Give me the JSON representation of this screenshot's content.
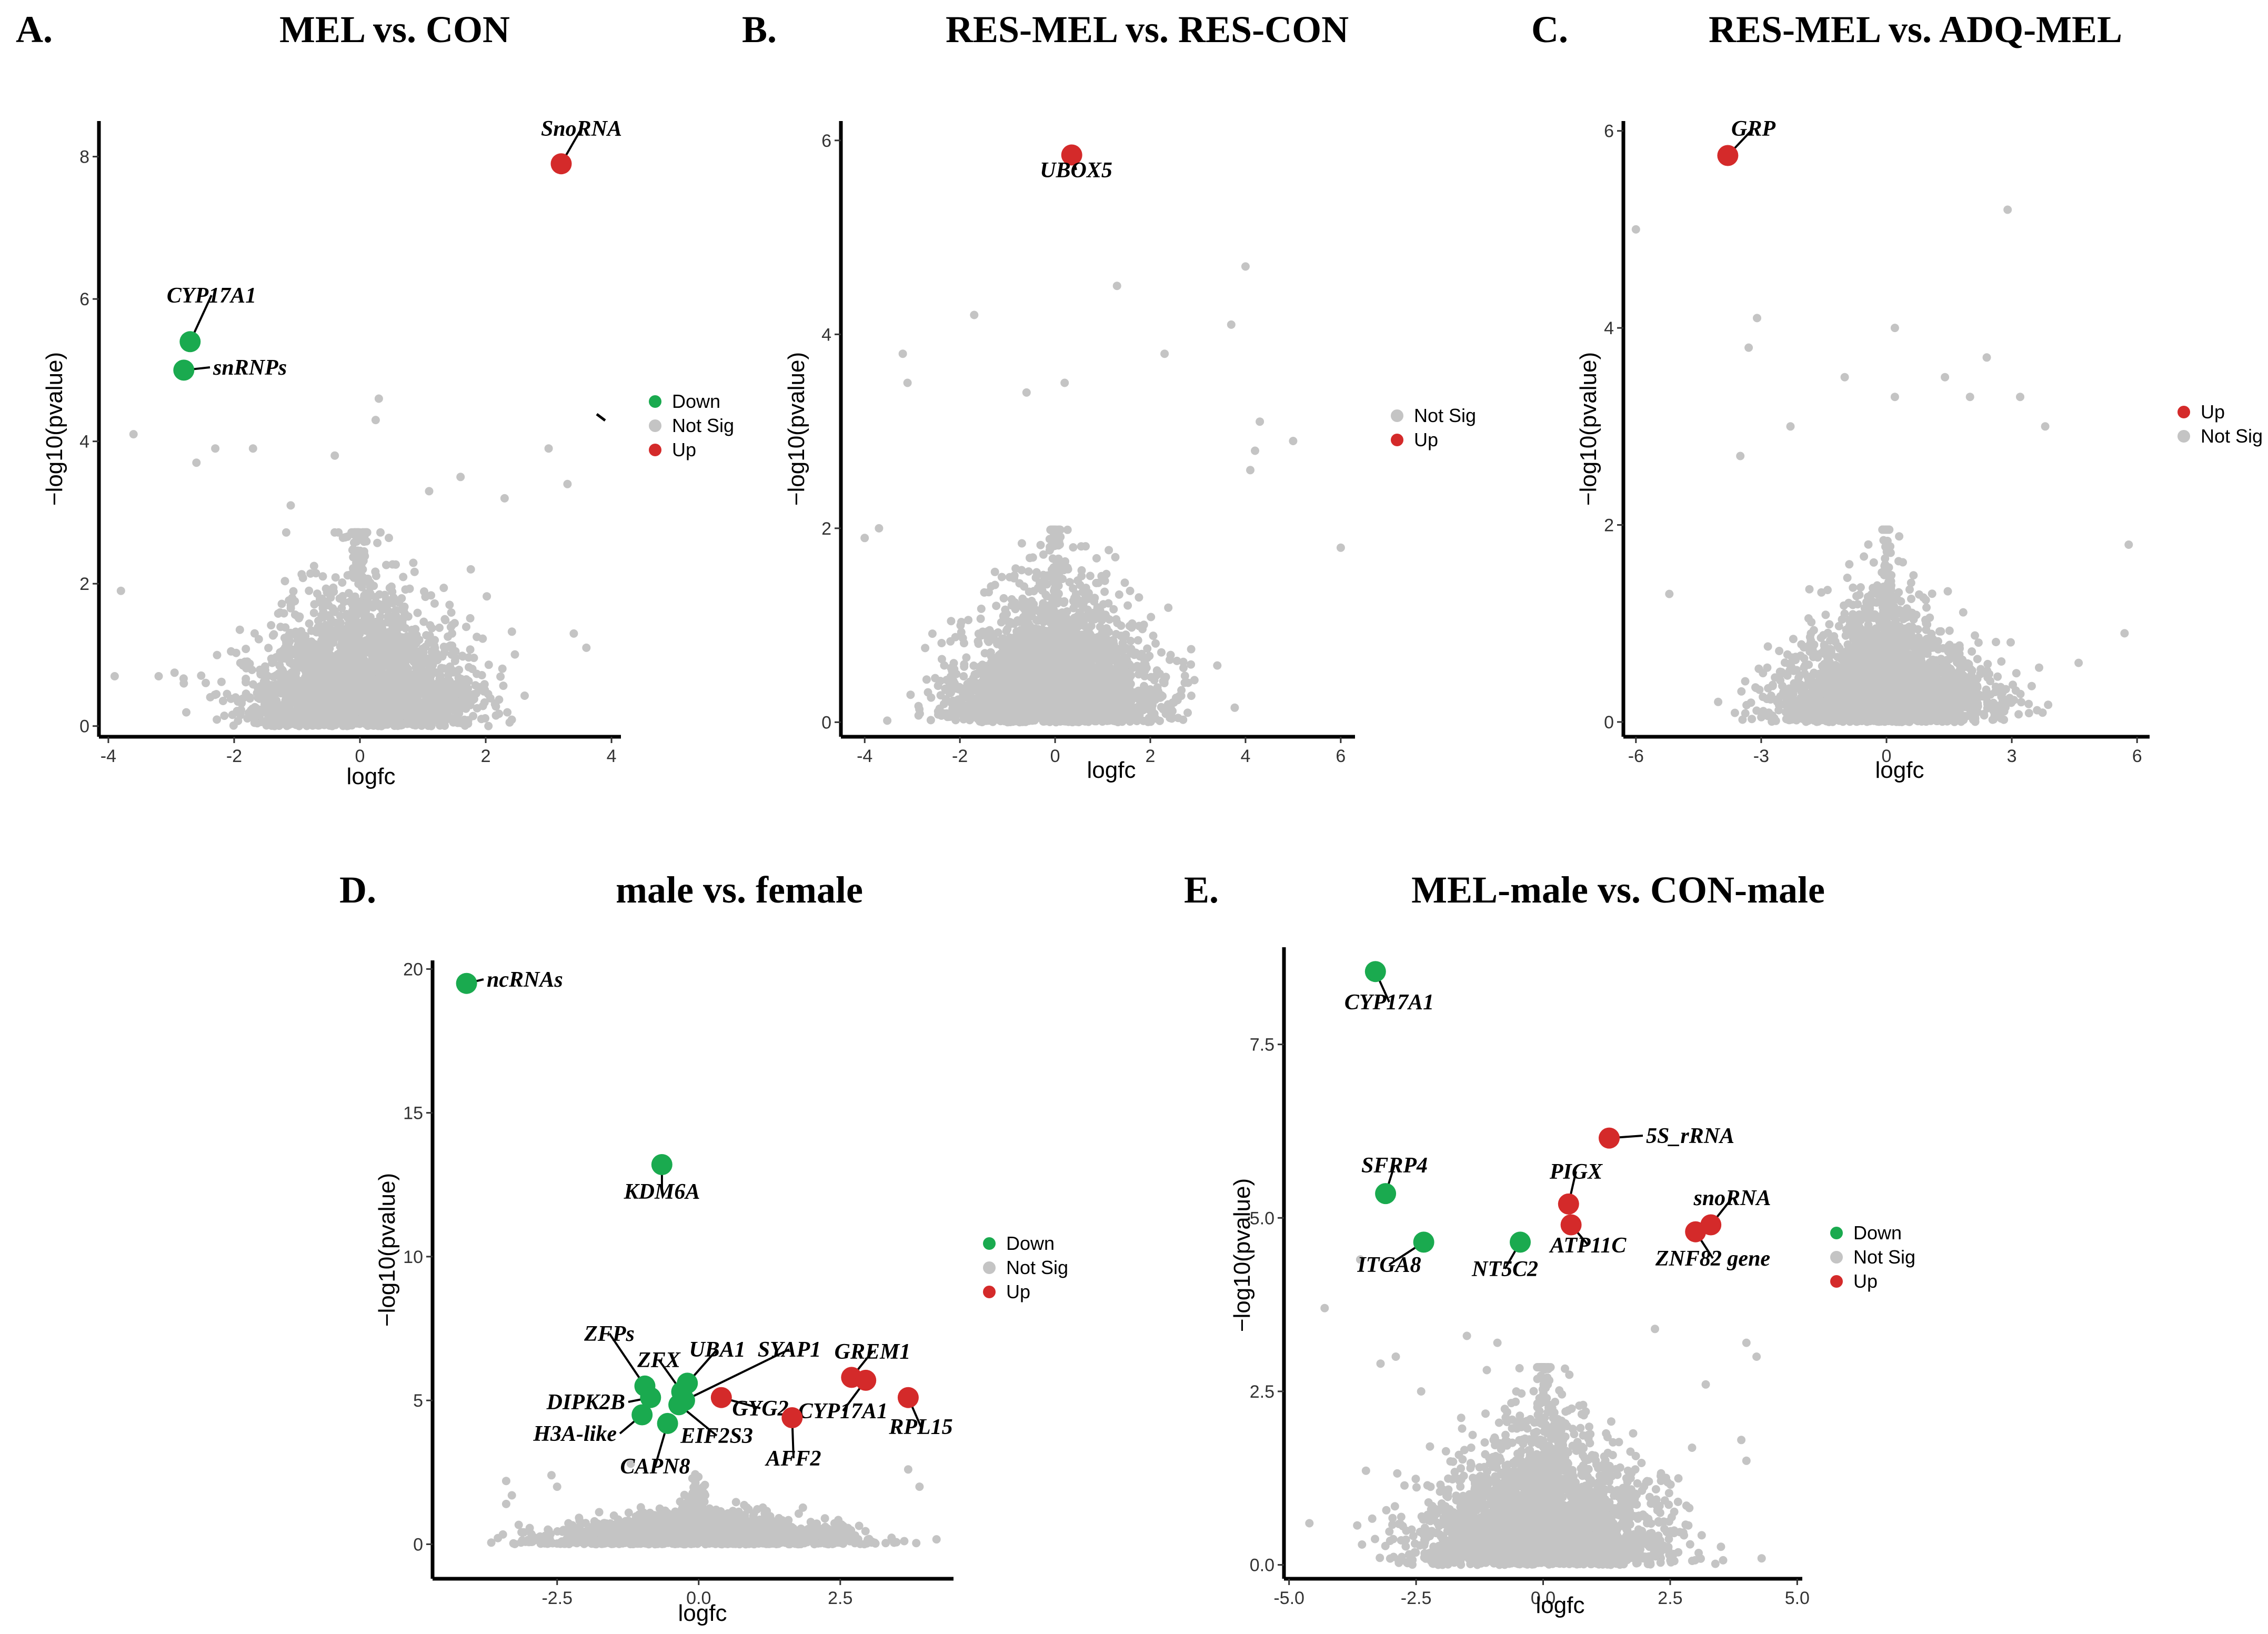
{
  "colors": {
    "down": "#1aaa4f",
    "not_sig": "#c4c4c4",
    "up": "#d42a2a",
    "axis": "#000000"
  },
  "chart_data": [
    {
      "id": "A",
      "letter": "A.",
      "title": "MEL vs. CON",
      "type": "scatter",
      "xlabel": "logfc",
      "ylabel": "−log10(pvalue)",
      "xlim": [
        -4.15,
        4.15
      ],
      "ylim": [
        -0.15,
        8.5
      ],
      "xticks": [
        {
          "v": -4,
          "t": "-4"
        },
        {
          "v": -2,
          "t": "-2"
        },
        {
          "v": 0,
          "t": "0"
        },
        {
          "v": 2,
          "t": "2"
        },
        {
          "v": 4,
          "t": "4"
        }
      ],
      "yticks": [
        {
          "v": 0,
          "t": "0"
        },
        {
          "v": 2,
          "t": "2"
        },
        {
          "v": 4,
          "t": "4"
        },
        {
          "v": 6,
          "t": "6"
        },
        {
          "v": 8,
          "t": "8"
        }
      ],
      "legend": [
        {
          "key": "down",
          "label": "Down"
        },
        {
          "key": "not_sig",
          "label": "Not Sig"
        },
        {
          "key": "up",
          "label": "Up"
        }
      ],
      "cloud": {
        "seed": 11,
        "n": 2600,
        "xscale": 0.85,
        "yscale": 0.95,
        "xmax": 3.9
      },
      "outliers": [
        [
          -3.6,
          4.1
        ],
        [
          -2.3,
          3.9
        ],
        [
          -1.7,
          3.9
        ],
        [
          -2.6,
          3.7
        ],
        [
          3.0,
          3.9
        ],
        [
          3.3,
          3.4
        ],
        [
          -3.8,
          1.9
        ],
        [
          -2.8,
          0.6
        ],
        [
          3.4,
          1.3
        ],
        [
          3.6,
          1.1
        ],
        [
          1.6,
          3.5
        ],
        [
          2.3,
          3.2
        ],
        [
          0.3,
          4.6
        ],
        [
          0.25,
          4.3
        ],
        [
          -0.4,
          3.8
        ],
        [
          -1.1,
          3.1
        ],
        [
          1.1,
          3.3
        ],
        [
          -3.2,
          0.7
        ],
        [
          -3.9,
          0.7
        ]
      ],
      "highlights": [
        {
          "x": 3.2,
          "y": 7.9,
          "cls": "up",
          "label": "SnoRNA"
        },
        {
          "x": -2.7,
          "y": 5.4,
          "cls": "down",
          "label": "CYP17A1"
        },
        {
          "x": -2.8,
          "y": 5.0,
          "cls": "down",
          "label": "snRNPs"
        }
      ]
    },
    {
      "id": "B",
      "letter": "B.",
      "title": "RES-MEL vs. RES-CON",
      "type": "scatter",
      "xlabel": "logfc",
      "ylabel": "−log10(pvalue)",
      "xlim": [
        -4.5,
        6.3
      ],
      "ylim": [
        -0.15,
        6.2
      ],
      "xticks": [
        {
          "v": -4,
          "t": "-4"
        },
        {
          "v": -2,
          "t": "-2"
        },
        {
          "v": 0,
          "t": "0"
        },
        {
          "v": 2,
          "t": "2"
        },
        {
          "v": 4,
          "t": "4"
        },
        {
          "v": 6,
          "t": "6"
        }
      ],
      "yticks": [
        {
          "v": 0,
          "t": "0"
        },
        {
          "v": 2,
          "t": "2"
        },
        {
          "v": 4,
          "t": "4"
        },
        {
          "v": 6,
          "t": "6"
        }
      ],
      "legend": [
        {
          "key": "not_sig",
          "label": "Not Sig"
        },
        {
          "key": "up",
          "label": "Up"
        }
      ],
      "cloud": {
        "seed": 23,
        "n": 2600,
        "xscale": 1.0,
        "yscale": 0.7,
        "xmax": 4.2
      },
      "outliers": [
        [
          -3.2,
          3.8
        ],
        [
          -3.1,
          3.5
        ],
        [
          1.3,
          4.5
        ],
        [
          4.0,
          4.7
        ],
        [
          -1.7,
          4.2
        ],
        [
          3.7,
          4.1
        ],
        [
          2.3,
          3.8
        ],
        [
          -0.6,
          3.4
        ],
        [
          0.2,
          3.5
        ],
        [
          4.3,
          3.1
        ],
        [
          5.0,
          2.9
        ],
        [
          6.0,
          1.8
        ],
        [
          -3.7,
          2.0
        ],
        [
          -4.0,
          1.9
        ],
        [
          4.1,
          2.6
        ],
        [
          4.2,
          2.8
        ]
      ],
      "highlights": [
        {
          "x": 0.35,
          "y": 5.85,
          "cls": "up",
          "label": "UBOX5"
        }
      ]
    },
    {
      "id": "C",
      "letter": "C.",
      "title": "RES-MEL vs. ADQ-MEL",
      "type": "scatter",
      "xlabel": "logfc",
      "ylabel": "−log10(pvalue)",
      "xlim": [
        -6.3,
        6.3
      ],
      "ylim": [
        -0.15,
        6.1
      ],
      "xticks": [
        {
          "v": -6,
          "t": "-6"
        },
        {
          "v": -3,
          "t": "-3"
        },
        {
          "v": 0,
          "t": "0"
        },
        {
          "v": 3,
          "t": "3"
        },
        {
          "v": 6,
          "t": "6"
        }
      ],
      "yticks": [
        {
          "v": 0,
          "t": "0"
        },
        {
          "v": 2,
          "t": "2"
        },
        {
          "v": 4,
          "t": "4"
        },
        {
          "v": 6,
          "t": "6"
        }
      ],
      "legend": [
        {
          "key": "up",
          "label": "Up"
        },
        {
          "key": "not_sig",
          "label": "Not Sig"
        }
      ],
      "cloud": {
        "seed": 37,
        "n": 2600,
        "xscale": 1.2,
        "yscale": 0.6,
        "xmax": 5.3
      },
      "outliers": [
        [
          -6.0,
          5.0
        ],
        [
          2.9,
          5.2
        ],
        [
          -3.1,
          4.1
        ],
        [
          0.2,
          4.0
        ],
        [
          -3.3,
          3.8
        ],
        [
          2.4,
          3.7
        ],
        [
          -1.0,
          3.5
        ],
        [
          1.4,
          3.5
        ],
        [
          3.2,
          3.3
        ],
        [
          2.0,
          3.3
        ],
        [
          0.2,
          3.3
        ],
        [
          -2.3,
          3.0
        ],
        [
          3.8,
          3.0
        ],
        [
          -3.5,
          2.7
        ],
        [
          5.8,
          1.8
        ],
        [
          -5.2,
          1.3
        ],
        [
          5.7,
          0.9
        ],
        [
          4.6,
          0.6
        ]
      ],
      "highlights": [
        {
          "x": -3.8,
          "y": 5.75,
          "cls": "up",
          "label": "GRP"
        }
      ]
    },
    {
      "id": "D",
      "letter": "D.",
      "title": "male vs. female",
      "type": "scatter",
      "xlabel": "logfc",
      "ylabel": "−log10(pvalue)",
      "xlim": [
        -4.7,
        4.5
      ],
      "ylim": [
        -1.2,
        20.3
      ],
      "xticks": [
        {
          "v": -2.5,
          "t": "-2.5"
        },
        {
          "v": 0,
          "t": "0.0"
        },
        {
          "v": 2.5,
          "t": "2.5"
        }
      ],
      "yticks": [
        {
          "v": 0,
          "t": "0"
        },
        {
          "v": 5,
          "t": "5"
        },
        {
          "v": 10,
          "t": "10"
        },
        {
          "v": 15,
          "t": "15"
        },
        {
          "v": 20,
          "t": "20"
        }
      ],
      "legend": [
        {
          "key": "down",
          "label": "Down"
        },
        {
          "key": "not_sig",
          "label": "Not Sig"
        },
        {
          "key": "up",
          "label": "Up"
        }
      ],
      "cloud": {
        "seed": 51,
        "n": 2400,
        "xscale": 1.2,
        "yscale": 0.55,
        "xmax": 4.2
      },
      "outliers": [
        [
          -3.4,
          2.2
        ],
        [
          -3.3,
          1.7
        ],
        [
          -2.6,
          2.4
        ],
        [
          3.7,
          2.6
        ],
        [
          3.9,
          2.0
        ],
        [
          -1.2,
          2.8
        ],
        [
          -3.4,
          1.4
        ],
        [
          -2.5,
          2.0
        ]
      ],
      "highlights": [
        {
          "x": -4.1,
          "y": 19.5,
          "cls": "down",
          "label": "ncRNAs"
        },
        {
          "x": -0.65,
          "y": 13.2,
          "cls": "down",
          "label": "KDM6A"
        },
        {
          "x": -0.95,
          "y": 5.5,
          "cls": "down",
          "label": "ZFPs"
        },
        {
          "x": -0.85,
          "y": 5.1,
          "cls": "down",
          "label": "DIPK2B"
        },
        {
          "x": -1.0,
          "y": 4.5,
          "cls": "down",
          "label": "H3A-like"
        },
        {
          "x": -0.55,
          "y": 4.2,
          "cls": "down",
          "label": "CAPN8"
        },
        {
          "x": -0.3,
          "y": 5.3,
          "cls": "down",
          "label": "ZFX"
        },
        {
          "x": -0.2,
          "y": 5.6,
          "cls": "down",
          "label": "UBA1"
        },
        {
          "x": -0.25,
          "y": 5.0,
          "cls": "down",
          "label": "SYAP1"
        },
        {
          "x": -0.35,
          "y": 4.85,
          "cls": "down",
          "label": "EIF2S3"
        },
        {
          "x": 0.4,
          "y": 5.1,
          "cls": "up",
          "label": "GYG2"
        },
        {
          "x": 2.7,
          "y": 5.8,
          "cls": "up",
          "label": "GREM1"
        },
        {
          "x": 2.95,
          "y": 5.7,
          "cls": "up",
          "label": "CYP17A1"
        },
        {
          "x": 3.7,
          "y": 5.1,
          "cls": "up",
          "label": "RPL15"
        },
        {
          "x": 1.65,
          "y": 4.4,
          "cls": "up",
          "label": "AFF2"
        }
      ]
    },
    {
      "id": "E",
      "letter": "E.",
      "title": "MEL-male vs. CON-male",
      "type": "scatter",
      "xlabel": "logfc",
      "ylabel": "−log10(pvalue)",
      "xlim": [
        -5.1,
        5.1
      ],
      "ylim": [
        -0.2,
        8.9
      ],
      "xticks": [
        {
          "v": -5,
          "t": "-5.0"
        },
        {
          "v": -2.5,
          "t": "-2.5"
        },
        {
          "v": 0,
          "t": "0.0"
        },
        {
          "v": 2.5,
          "t": "2.5"
        },
        {
          "v": 5,
          "t": "5.0"
        }
      ],
      "yticks": [
        {
          "v": 0,
          "t": "0.0"
        },
        {
          "v": 2.5,
          "t": "2.5"
        },
        {
          "v": 5,
          "t": "5.0"
        },
        {
          "v": 7.5,
          "t": "7.5"
        }
      ],
      "legend": [
        {
          "key": "down",
          "label": "Down"
        },
        {
          "key": "not_sig",
          "label": "Not Sig"
        },
        {
          "key": "up",
          "label": "Up"
        }
      ],
      "cloud": {
        "seed": 67,
        "n": 2600,
        "xscale": 1.15,
        "yscale": 1.0,
        "xmax": 4.3
      },
      "outliers": [
        [
          -4.6,
          0.6
        ],
        [
          -4.3,
          3.7
        ],
        [
          -3.6,
          4.4
        ],
        [
          -3.2,
          2.9
        ],
        [
          -2.9,
          3.0
        ],
        [
          -2.4,
          2.5
        ],
        [
          4.0,
          3.2
        ],
        [
          4.2,
          3.0
        ],
        [
          3.2,
          2.6
        ],
        [
          3.9,
          1.8
        ],
        [
          4.0,
          1.5
        ],
        [
          -1.5,
          3.3
        ],
        [
          2.2,
          3.4
        ],
        [
          -0.9,
          3.2
        ]
      ],
      "highlights": [
        {
          "x": -3.3,
          "y": 8.55,
          "cls": "down",
          "label": "CYP17A1"
        },
        {
          "x": -3.1,
          "y": 5.35,
          "cls": "down",
          "label": "SFRP4"
        },
        {
          "x": -2.35,
          "y": 4.65,
          "cls": "down",
          "label": "ITGA8"
        },
        {
          "x": -0.45,
          "y": 4.65,
          "cls": "down",
          "label": "NT5C2"
        },
        {
          "x": 1.3,
          "y": 6.15,
          "cls": "up",
          "label": "5S_rRNA"
        },
        {
          "x": 0.5,
          "y": 5.2,
          "cls": "up",
          "label": "PIGX"
        },
        {
          "x": 0.55,
          "y": 4.9,
          "cls": "up",
          "label": "ATP11C"
        },
        {
          "x": 3.3,
          "y": 4.9,
          "cls": "up",
          "label": "snoRNA"
        },
        {
          "x": 3.0,
          "y": 4.8,
          "cls": "up",
          "label": "ZNF82 gene"
        }
      ]
    }
  ]
}
